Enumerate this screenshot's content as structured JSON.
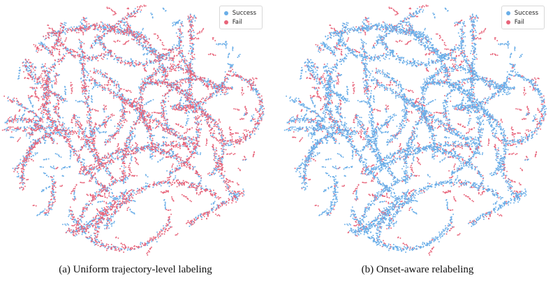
{
  "colors": {
    "success": "#6aaee8",
    "fail": "#e8647a",
    "background": "#ffffff"
  },
  "chart_data": [
    {
      "type": "scatter",
      "title": "",
      "caption": "(a) Uniform trajectory-level labeling",
      "xlabel": "",
      "ylabel": "",
      "axes_visible": false,
      "grid": false,
      "legend_position": "top-right",
      "series": [
        {
          "name": "Success",
          "color": "#6aaee8"
        },
        {
          "name": "Fail",
          "color": "#e8647a"
        }
      ],
      "labeling": "uniform"
    },
    {
      "type": "scatter",
      "title": "",
      "caption": "(b) Onset-aware relabeling",
      "xlabel": "",
      "ylabel": "",
      "axes_visible": false,
      "grid": false,
      "legend_position": "top-right",
      "series": [
        {
          "name": "Success",
          "color": "#6aaee8"
        },
        {
          "name": "Fail",
          "color": "#e8647a"
        }
      ],
      "labeling": "onset-aware"
    }
  ]
}
